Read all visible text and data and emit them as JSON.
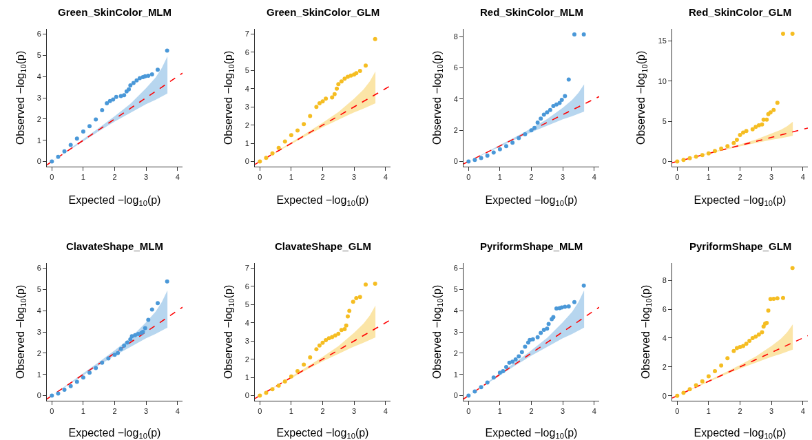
{
  "chart_data": [
    {
      "type": "scatter",
      "title": "Green_SkinColor_MLM",
      "xlabel": "Expected −log$_{10}$(p)",
      "ylabel": "Observed −log$_{10}$(p)",
      "xlim": [
        -0.16,
        4.16
      ],
      "xticks": [
        0,
        1,
        2,
        3,
        4
      ],
      "ylim": [
        -0.24,
        6.24
      ],
      "yticks": [
        0,
        1,
        2,
        3,
        4,
        5,
        6
      ],
      "grid": false,
      "legend": false,
      "series": [
        {
          "type": "scatter",
          "marker": "circle",
          "color": "#4a98d8",
          "x": [
            0,
            0.2,
            0.4,
            0.6,
            0.8,
            1,
            1.2,
            1.4,
            1.6,
            1.75,
            1.85,
            1.95,
            2.05,
            2.2,
            2.3,
            2.38,
            2.45,
            2.5,
            2.6,
            2.7,
            2.8,
            2.9,
            2.97,
            3.07,
            3.19,
            3.37,
            3.67
          ],
          "values": [
            0,
            0.22,
            0.48,
            0.78,
            1.08,
            1.41,
            1.66,
            1.98,
            2.42,
            2.74,
            2.85,
            2.92,
            3.04,
            3.08,
            3.12,
            3.3,
            3.4,
            3.58,
            3.7,
            3.82,
            3.92,
            3.97,
            4.01,
            4.04,
            4.1,
            4.32,
            5.22
          ]
        },
        {
          "type": "line",
          "line_style": "dashed",
          "marker": "none",
          "color": "#ff0000",
          "x": [
            -0.16,
            0,
            0.5,
            1,
            1.5,
            2,
            2.5,
            3,
            3.3,
            3.5,
            3.68,
            4.16
          ],
          "values": [
            -0.16,
            0,
            0.5,
            1,
            1.5,
            2,
            2.5,
            3,
            3.3,
            3.5,
            3.68,
            4.16
          ],
          "lower": [
            null,
            0,
            0.48,
            0.96,
            1.43,
            1.88,
            2.3,
            2.7,
            2.9,
            3.05,
            3.2,
            null
          ],
          "upper": [
            null,
            0,
            0.52,
            1.05,
            1.58,
            2.13,
            2.72,
            3.45,
            3.95,
            4.4,
            4.95,
            null
          ]
        }
      ]
    },
    {
      "type": "scatter",
      "title": "Green_SkinColor_GLM",
      "xlabel": "Expected −log$_{10}$(p)",
      "ylabel": "Observed −log$_{10}$(p)",
      "xlim": [
        -0.16,
        4.16
      ],
      "xticks": [
        0,
        1,
        2,
        3,
        4
      ],
      "ylim": [
        -0.28,
        7.28
      ],
      "yticks": [
        0,
        1,
        2,
        3,
        4,
        5,
        6,
        7
      ],
      "grid": false,
      "legend": false,
      "series": [
        {
          "type": "scatter",
          "marker": "circle",
          "color": "#f5bd22",
          "x": [
            0,
            0.2,
            0.4,
            0.6,
            0.8,
            1,
            1.2,
            1.4,
            1.6,
            1.8,
            1.9,
            2.0,
            2.1,
            2.3,
            2.38,
            2.45,
            2.5,
            2.6,
            2.7,
            2.8,
            2.9,
            3.0,
            3.07,
            3.19,
            3.37,
            3.67
          ],
          "values": [
            0,
            0.2,
            0.45,
            0.75,
            1.1,
            1.45,
            1.7,
            2.05,
            2.5,
            3.0,
            3.2,
            3.3,
            3.45,
            3.52,
            3.7,
            4.0,
            4.25,
            4.4,
            4.55,
            4.65,
            4.72,
            4.78,
            4.85,
            4.97,
            5.27,
            6.72
          ]
        },
        {
          "type": "line",
          "line_style": "dashed",
          "marker": "none",
          "color": "#ff0000",
          "x": [
            -0.16,
            0,
            0.5,
            1,
            1.5,
            2,
            2.5,
            3,
            3.3,
            3.5,
            3.68,
            4.16
          ],
          "values": [
            -0.16,
            0,
            0.5,
            1,
            1.5,
            2,
            2.5,
            3,
            3.3,
            3.5,
            3.68,
            4.16
          ],
          "lower": [
            null,
            0,
            0.48,
            0.96,
            1.43,
            1.88,
            2.3,
            2.7,
            2.9,
            3.05,
            3.2,
            null
          ],
          "upper": [
            null,
            0,
            0.52,
            1.05,
            1.58,
            2.13,
            2.72,
            3.45,
            3.95,
            4.4,
            4.95,
            null
          ]
        }
      ]
    },
    {
      "type": "scatter",
      "title": "Red_SkinColor_MLM",
      "xlabel": "Expected −log$_{10}$(p)",
      "ylabel": "Observed −log$_{10}$(p)",
      "xlim": [
        -0.16,
        4.16
      ],
      "xticks": [
        0,
        1,
        2,
        3,
        4
      ],
      "ylim": [
        -0.33,
        8.5
      ],
      "yticks": [
        0,
        2,
        4,
        6,
        8
      ],
      "grid": false,
      "legend": false,
      "series": [
        {
          "type": "scatter",
          "marker": "circle",
          "color": "#4a98d8",
          "x": [
            0,
            0.2,
            0.4,
            0.6,
            0.8,
            1,
            1.2,
            1.4,
            1.6,
            1.8,
            2.0,
            2.1,
            2.2,
            2.3,
            2.4,
            2.5,
            2.6,
            2.7,
            2.8,
            2.9,
            2.97,
            3.07,
            3.19,
            3.37,
            3.67
          ],
          "values": [
            0,
            0.1,
            0.22,
            0.38,
            0.58,
            0.78,
            0.98,
            1.2,
            1.5,
            1.75,
            2.0,
            2.15,
            2.5,
            2.75,
            3.0,
            3.15,
            3.3,
            3.55,
            3.65,
            3.75,
            3.95,
            4.2,
            5.25,
            8.15,
            8.15
          ]
        },
        {
          "type": "line",
          "line_style": "dashed",
          "marker": "none",
          "color": "#ff0000",
          "x": [
            -0.16,
            0,
            0.5,
            1,
            1.5,
            2,
            2.5,
            3,
            3.3,
            3.5,
            3.68,
            4.16
          ],
          "values": [
            -0.16,
            0,
            0.5,
            1,
            1.5,
            2,
            2.5,
            3,
            3.3,
            3.5,
            3.68,
            4.16
          ],
          "lower": [
            null,
            0,
            0.48,
            0.96,
            1.43,
            1.88,
            2.3,
            2.7,
            2.9,
            3.05,
            3.2,
            null
          ],
          "upper": [
            null,
            0,
            0.52,
            1.05,
            1.58,
            2.13,
            2.72,
            3.45,
            3.95,
            4.4,
            4.95,
            null
          ]
        }
      ]
    },
    {
      "type": "scatter",
      "title": "Red_SkinColor_GLM",
      "xlabel": "Expected −log$_{10}$(p)",
      "ylabel": "Observed −log$_{10}$(p)",
      "xlim": [
        -0.16,
        4.16
      ],
      "xticks": [
        0,
        1,
        2,
        3,
        4
      ],
      "ylim": [
        -0.64,
        16.5
      ],
      "yticks": [
        0,
        5,
        10,
        15
      ],
      "grid": false,
      "legend": false,
      "series": [
        {
          "type": "scatter",
          "marker": "circle",
          "color": "#f5bd22",
          "x": [
            0,
            0.2,
            0.4,
            0.6,
            0.8,
            1,
            1.2,
            1.4,
            1.6,
            1.8,
            1.9,
            2.0,
            2.1,
            2.2,
            2.4,
            2.5,
            2.6,
            2.7,
            2.75,
            2.85,
            2.9,
            2.97,
            3.07,
            3.19,
            3.37,
            3.67
          ],
          "values": [
            0,
            0.2,
            0.4,
            0.6,
            0.8,
            1.0,
            1.3,
            1.6,
            1.9,
            2.3,
            2.7,
            3.3,
            3.6,
            3.8,
            4.0,
            4.3,
            4.5,
            4.6,
            5.2,
            5.2,
            5.9,
            6.1,
            6.4,
            7.3,
            15.9,
            15.9
          ]
        },
        {
          "type": "line",
          "line_style": "dashed",
          "marker": "none",
          "color": "#ff0000",
          "x": [
            -0.16,
            0,
            0.5,
            1,
            1.5,
            2,
            2.5,
            3,
            3.3,
            3.5,
            3.68,
            4.16
          ],
          "values": [
            -0.16,
            0,
            0.5,
            1,
            1.5,
            2,
            2.5,
            3,
            3.3,
            3.5,
            3.68,
            4.16
          ],
          "lower": [
            null,
            0,
            0.48,
            0.96,
            1.43,
            1.88,
            2.3,
            2.7,
            2.9,
            3.05,
            3.2,
            null
          ],
          "upper": [
            null,
            0,
            0.52,
            1.05,
            1.58,
            2.13,
            2.72,
            3.45,
            3.95,
            4.4,
            4.95,
            null
          ]
        }
      ]
    },
    {
      "type": "scatter",
      "title": "ClavateShape_MLM",
      "xlabel": "Expected −log$_{10}$(p)",
      "ylabel": "Observed −log$_{10}$(p)",
      "xlim": [
        -0.16,
        4.16
      ],
      "xticks": [
        0,
        1,
        2,
        3,
        4
      ],
      "ylim": [
        -0.24,
        6.24
      ],
      "yticks": [
        0,
        1,
        2,
        3,
        4,
        5,
        6
      ],
      "grid": false,
      "legend": false,
      "series": [
        {
          "type": "scatter",
          "marker": "circle",
          "color": "#4a98d8",
          "x": [
            0,
            0.2,
            0.4,
            0.6,
            0.8,
            1,
            1.2,
            1.4,
            1.6,
            1.8,
            2.0,
            2.1,
            2.2,
            2.3,
            2.4,
            2.5,
            2.55,
            2.65,
            2.75,
            2.85,
            2.9,
            2.97,
            3.07,
            3.19,
            3.37,
            3.67
          ],
          "values": [
            0,
            0.1,
            0.28,
            0.45,
            0.65,
            0.85,
            1.08,
            1.3,
            1.55,
            1.75,
            1.92,
            2.0,
            2.2,
            2.35,
            2.5,
            2.65,
            2.8,
            2.85,
            2.9,
            2.95,
            3.0,
            3.18,
            3.57,
            4.05,
            4.35,
            5.37
          ]
        },
        {
          "type": "line",
          "line_style": "dashed",
          "marker": "none",
          "color": "#ff0000",
          "x": [
            -0.16,
            0,
            0.5,
            1,
            1.5,
            2,
            2.5,
            3,
            3.3,
            3.5,
            3.68,
            4.16
          ],
          "values": [
            -0.16,
            0,
            0.5,
            1,
            1.5,
            2,
            2.5,
            3,
            3.3,
            3.5,
            3.68,
            4.16
          ],
          "lower": [
            null,
            0,
            0.48,
            0.96,
            1.43,
            1.88,
            2.3,
            2.7,
            2.9,
            3.05,
            3.2,
            null
          ],
          "upper": [
            null,
            0,
            0.52,
            1.05,
            1.58,
            2.13,
            2.72,
            3.45,
            3.95,
            4.4,
            4.95,
            null
          ]
        }
      ]
    },
    {
      "type": "scatter",
      "title": "ClavateShape_GLM",
      "xlabel": "Expected −log$_{10}$(p)",
      "ylabel": "Observed −log$_{10}$(p)",
      "xlim": [
        -0.16,
        4.16
      ],
      "xticks": [
        0,
        1,
        2,
        3,
        4
      ],
      "ylim": [
        -0.28,
        7.28
      ],
      "yticks": [
        0,
        1,
        2,
        3,
        4,
        5,
        6,
        7
      ],
      "grid": false,
      "legend": false,
      "series": [
        {
          "type": "scatter",
          "marker": "circle",
          "color": "#f5bd22",
          "x": [
            0,
            0.2,
            0.4,
            0.6,
            0.8,
            1,
            1.2,
            1.4,
            1.6,
            1.8,
            1.9,
            2.0,
            2.1,
            2.2,
            2.3,
            2.4,
            2.5,
            2.6,
            2.7,
            2.75,
            2.8,
            2.85,
            2.97,
            3.07,
            3.19,
            3.37,
            3.67
          ],
          "values": [
            0,
            0.15,
            0.35,
            0.55,
            0.78,
            1.05,
            1.35,
            1.7,
            2.1,
            2.55,
            2.75,
            2.9,
            3.05,
            3.15,
            3.22,
            3.3,
            3.4,
            3.6,
            3.65,
            3.85,
            4.35,
            4.65,
            5.15,
            5.35,
            5.42,
            6.1,
            6.15
          ]
        },
        {
          "type": "line",
          "line_style": "dashed",
          "marker": "none",
          "color": "#ff0000",
          "x": [
            -0.16,
            0,
            0.5,
            1,
            1.5,
            2,
            2.5,
            3,
            3.3,
            3.5,
            3.68,
            4.16
          ],
          "values": [
            -0.16,
            0,
            0.5,
            1,
            1.5,
            2,
            2.5,
            3,
            3.3,
            3.5,
            3.68,
            4.16
          ],
          "lower": [
            null,
            0,
            0.48,
            0.96,
            1.43,
            1.88,
            2.3,
            2.7,
            2.9,
            3.05,
            3.2,
            null
          ],
          "upper": [
            null,
            0,
            0.52,
            1.05,
            1.58,
            2.13,
            2.72,
            3.45,
            3.95,
            4.4,
            4.95,
            null
          ]
        }
      ]
    },
    {
      "type": "scatter",
      "title": "PyriformShape_MLM",
      "xlabel": "Expected −log$_{10}$(p)",
      "ylabel": "Observed −log$_{10}$(p)",
      "xlim": [
        -0.16,
        4.16
      ],
      "xticks": [
        0,
        1,
        2,
        3,
        4
      ],
      "ylim": [
        -0.24,
        6.24
      ],
      "yticks": [
        0,
        1,
        2,
        3,
        4,
        5,
        6
      ],
      "grid": false,
      "legend": false,
      "series": [
        {
          "type": "scatter",
          "marker": "circle",
          "color": "#4a98d8",
          "x": [
            0,
            0.2,
            0.4,
            0.6,
            0.8,
            1,
            1.1,
            1.2,
            1.3,
            1.4,
            1.5,
            1.6,
            1.7,
            1.8,
            1.9,
            1.95,
            2.05,
            2.2,
            2.3,
            2.4,
            2.5,
            2.55,
            2.65,
            2.7,
            2.8,
            2.9,
            2.97,
            3.07,
            3.19,
            3.37,
            3.67
          ],
          "values": [
            0,
            0.2,
            0.4,
            0.62,
            0.85,
            1.08,
            1.15,
            1.35,
            1.55,
            1.6,
            1.7,
            1.85,
            2.05,
            2.3,
            2.5,
            2.62,
            2.65,
            2.75,
            2.95,
            3.1,
            3.15,
            3.37,
            3.6,
            3.7,
            4.1,
            4.12,
            4.15,
            4.18,
            4.2,
            4.4,
            5.18
          ]
        },
        {
          "type": "line",
          "line_style": "dashed",
          "marker": "none",
          "color": "#ff0000",
          "x": [
            -0.16,
            0,
            0.5,
            1,
            1.5,
            2,
            2.5,
            3,
            3.3,
            3.5,
            3.68,
            4.16
          ],
          "values": [
            -0.16,
            0,
            0.5,
            1,
            1.5,
            2,
            2.5,
            3,
            3.3,
            3.5,
            3.68,
            4.16
          ],
          "lower": [
            null,
            0,
            0.48,
            0.96,
            1.43,
            1.88,
            2.3,
            2.7,
            2.9,
            3.05,
            3.2,
            null
          ],
          "upper": [
            null,
            0,
            0.52,
            1.05,
            1.58,
            2.13,
            2.72,
            3.45,
            3.95,
            4.4,
            4.95,
            null
          ]
        }
      ]
    },
    {
      "type": "scatter",
      "title": "PyriformShape_GLM",
      "xlabel": "Expected −log$_{10}$(p)",
      "ylabel": "Observed −log$_{10}$(p)",
      "xlim": [
        -0.16,
        4.16
      ],
      "xticks": [
        0,
        1,
        2,
        3,
        4
      ],
      "ylim": [
        -0.35,
        9.2
      ],
      "yticks": [
        0,
        2,
        4,
        6,
        8
      ],
      "grid": false,
      "legend": false,
      "series": [
        {
          "type": "scatter",
          "marker": "circle",
          "color": "#f5bd22",
          "x": [
            0,
            0.2,
            0.4,
            0.6,
            0.8,
            1,
            1.2,
            1.4,
            1.6,
            1.8,
            1.9,
            2.0,
            2.1,
            2.2,
            2.3,
            2.4,
            2.5,
            2.6,
            2.7,
            2.75,
            2.8,
            2.85,
            2.9,
            2.97,
            3.07,
            3.19,
            3.37,
            3.67
          ],
          "values": [
            0,
            0.2,
            0.45,
            0.72,
            1.0,
            1.35,
            1.7,
            2.1,
            2.6,
            3.1,
            3.3,
            3.38,
            3.45,
            3.6,
            3.8,
            4.0,
            4.1,
            4.25,
            4.4,
            4.8,
            5.0,
            5.05,
            5.9,
            6.7,
            6.72,
            6.75,
            6.78,
            8.85
          ]
        },
        {
          "type": "line",
          "line_style": "dashed",
          "marker": "none",
          "color": "#ff0000",
          "x": [
            -0.16,
            0,
            0.5,
            1,
            1.5,
            2,
            2.5,
            3,
            3.3,
            3.5,
            3.68,
            4.16
          ],
          "values": [
            -0.16,
            0,
            0.5,
            1,
            1.5,
            2,
            2.5,
            3,
            3.3,
            3.5,
            3.68,
            4.16
          ],
          "lower": [
            null,
            0,
            0.48,
            0.96,
            1.43,
            1.88,
            2.3,
            2.7,
            2.9,
            3.05,
            3.2,
            null
          ],
          "upper": [
            null,
            0,
            0.52,
            1.05,
            1.58,
            2.13,
            2.72,
            3.45,
            3.95,
            4.4,
            4.95,
            null
          ]
        }
      ]
    }
  ]
}
